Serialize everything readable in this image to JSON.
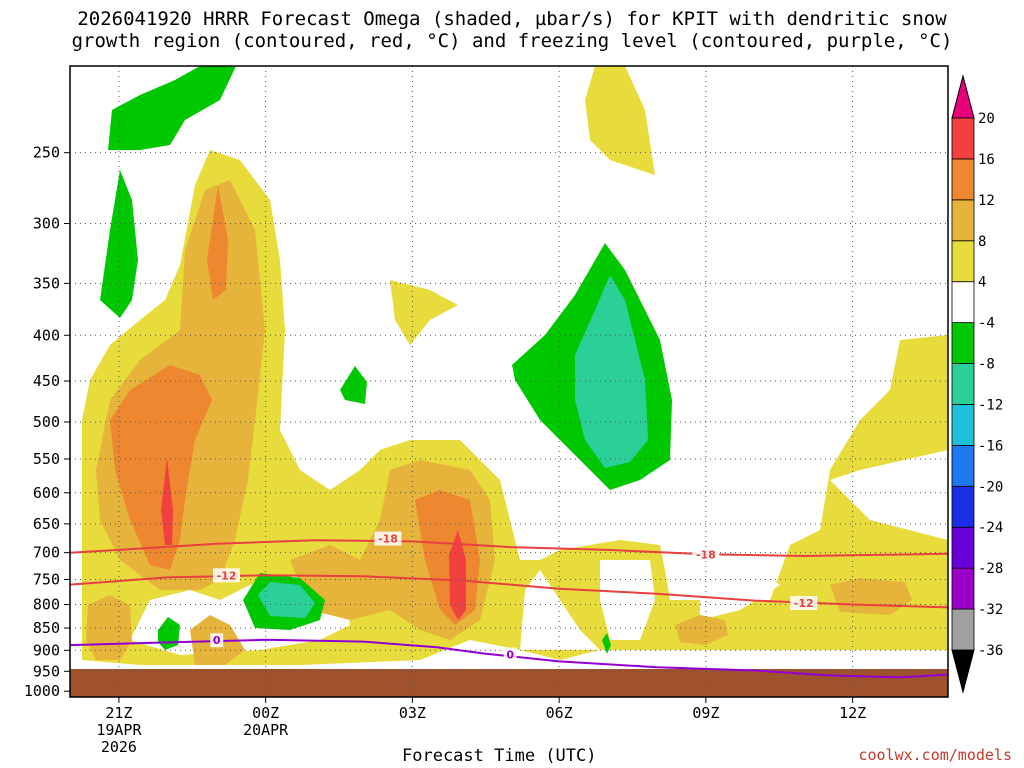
{
  "title": {
    "line1": "2026041920 HRRR Forecast Omega (shaded, µbar/s) for KPIT with dendritic snow",
    "line2": "growth region (contoured, red, °C) and freezing level (contoured, purple, °C)"
  },
  "watermark": "coolwx.com/models",
  "chart_data": {
    "type": "contour",
    "title": "2026041920 HRRR Forecast Omega (shaded, µbar/s) for KPIT with dendritic snow growth region (contoured, red, °C) and freezing level (contoured, purple, °C)",
    "xlabel": "Forecast Time (UTC)",
    "x_ticks": [
      {
        "label": "21Z",
        "sub1": "19APR",
        "sub2": "2026",
        "hour": 21
      },
      {
        "label": "00Z",
        "sub1": "20APR",
        "sub2": "",
        "hour": 24
      },
      {
        "label": "03Z",
        "sub1": "",
        "sub2": "",
        "hour": 27
      },
      {
        "label": "06Z",
        "sub1": "",
        "sub2": "",
        "hour": 30
      },
      {
        "label": "09Z",
        "sub1": "",
        "sub2": "",
        "hour": 33
      },
      {
        "label": "12Z",
        "sub1": "",
        "sub2": "",
        "hour": 36
      }
    ],
    "xlim_hours": [
      20,
      37.95
    ],
    "y_ticks_hpa": [
      250,
      300,
      350,
      400,
      450,
      500,
      550,
      600,
      650,
      700,
      750,
      800,
      850,
      900,
      950,
      1000
    ],
    "ylim_hpa": [
      200,
      1015
    ],
    "y_scale": "log-pressure",
    "grid": true,
    "terrain_color": "#a0522d",
    "colorbar": {
      "levels": [
        -36,
        -32,
        -28,
        -24,
        -20,
        -16,
        -12,
        -8,
        -4,
        4,
        8,
        12,
        16,
        20
      ],
      "colors": [
        "#000000",
        "#a0a0a0",
        "#9b00c8",
        "#6a00d8",
        "#1a2ee6",
        "#1e78f0",
        "#1cc0d8",
        "#2ad098",
        "#00c800",
        "#ffffff",
        "#e8dc3c",
        "#e6b43a",
        "#ee8830",
        "#f04040",
        "#e8007a"
      ]
    },
    "contours_temperature": [
      {
        "label": "-18",
        "color": "#e84040",
        "points": [
          [
            20.0,
            700
          ],
          [
            21.0,
            695
          ],
          [
            23.0,
            684
          ],
          [
            25.0,
            678
          ],
          [
            27.0,
            680
          ],
          [
            29.0,
            690
          ],
          [
            31.0,
            695
          ],
          [
            33.0,
            703
          ],
          [
            35.0,
            706
          ],
          [
            37.95,
            702
          ]
        ]
      },
      {
        "label": "-12",
        "color": "#e84040",
        "points": [
          [
            20.0,
            760
          ],
          [
            22.0,
            746
          ],
          [
            24.0,
            742
          ],
          [
            26.0,
            744
          ],
          [
            28.0,
            752
          ],
          [
            30.0,
            768
          ],
          [
            32.0,
            778
          ],
          [
            34.0,
            792
          ],
          [
            36.0,
            800
          ],
          [
            37.95,
            806
          ]
        ]
      },
      {
        "label": "0",
        "color": "#9400d3",
        "points": [
          [
            20.0,
            888
          ],
          [
            22.0,
            882
          ],
          [
            24.0,
            876
          ],
          [
            26.0,
            880
          ],
          [
            27.5,
            893
          ],
          [
            28.5,
            908
          ],
          [
            30.0,
            926
          ],
          [
            32.0,
            940
          ],
          [
            34.0,
            948
          ],
          [
            35.5,
            960
          ],
          [
            37.0,
            965
          ],
          [
            37.95,
            958
          ]
        ]
      }
    ],
    "contour_label_positions": [
      {
        "label": "-18",
        "hour": 26.5,
        "hpa": 675
      },
      {
        "label": "-12",
        "hour": 23.2,
        "hpa": 742
      },
      {
        "label": "0",
        "hour": 23.0,
        "hpa": 877
      },
      {
        "label": "-18",
        "hour": 33.0,
        "hpa": 703
      },
      {
        "label": "-12",
        "hour": 35.0,
        "hpa": 797
      },
      {
        "label": "0",
        "hour": 29.0,
        "hpa": 910
      }
    ]
  }
}
